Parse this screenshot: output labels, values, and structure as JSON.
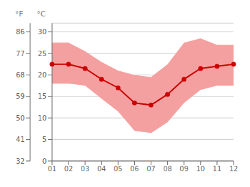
{
  "chart_data": {
    "type": "line",
    "categories": [
      "01",
      "02",
      "03",
      "04",
      "05",
      "06",
      "07",
      "08",
      "09",
      "10",
      "11",
      "12"
    ],
    "series": [
      {
        "type": "area",
        "color": "#f5a0a0",
        "low": [
          18.0,
          18.0,
          17.5,
          14.5,
          11.5,
          7.0,
          6.5,
          9.0,
          13.5,
          16.5,
          17.5,
          17.5
        ],
        "high": [
          27.5,
          27.5,
          25.5,
          23.0,
          21.0,
          20.0,
          19.5,
          22.5,
          27.5,
          28.5,
          27.0,
          27.0
        ]
      },
      {
        "type": "line",
        "color": "#cc0000",
        "marker": "circle",
        "values": [
          22.5,
          22.5,
          21.5,
          19.0,
          17.0,
          13.5,
          13.0,
          15.5,
          19.0,
          21.5,
          22.0,
          22.5
        ]
      }
    ],
    "ylim": [
      0,
      32
    ],
    "yticks": [
      0,
      5,
      10,
      15,
      20,
      25,
      30
    ],
    "ylabel": "°C",
    "y2lim": [
      32,
      89.6
    ],
    "y2ticks": [
      32,
      41,
      50,
      59,
      68,
      77,
      86
    ],
    "y2label": "°F",
    "grid": true
  }
}
